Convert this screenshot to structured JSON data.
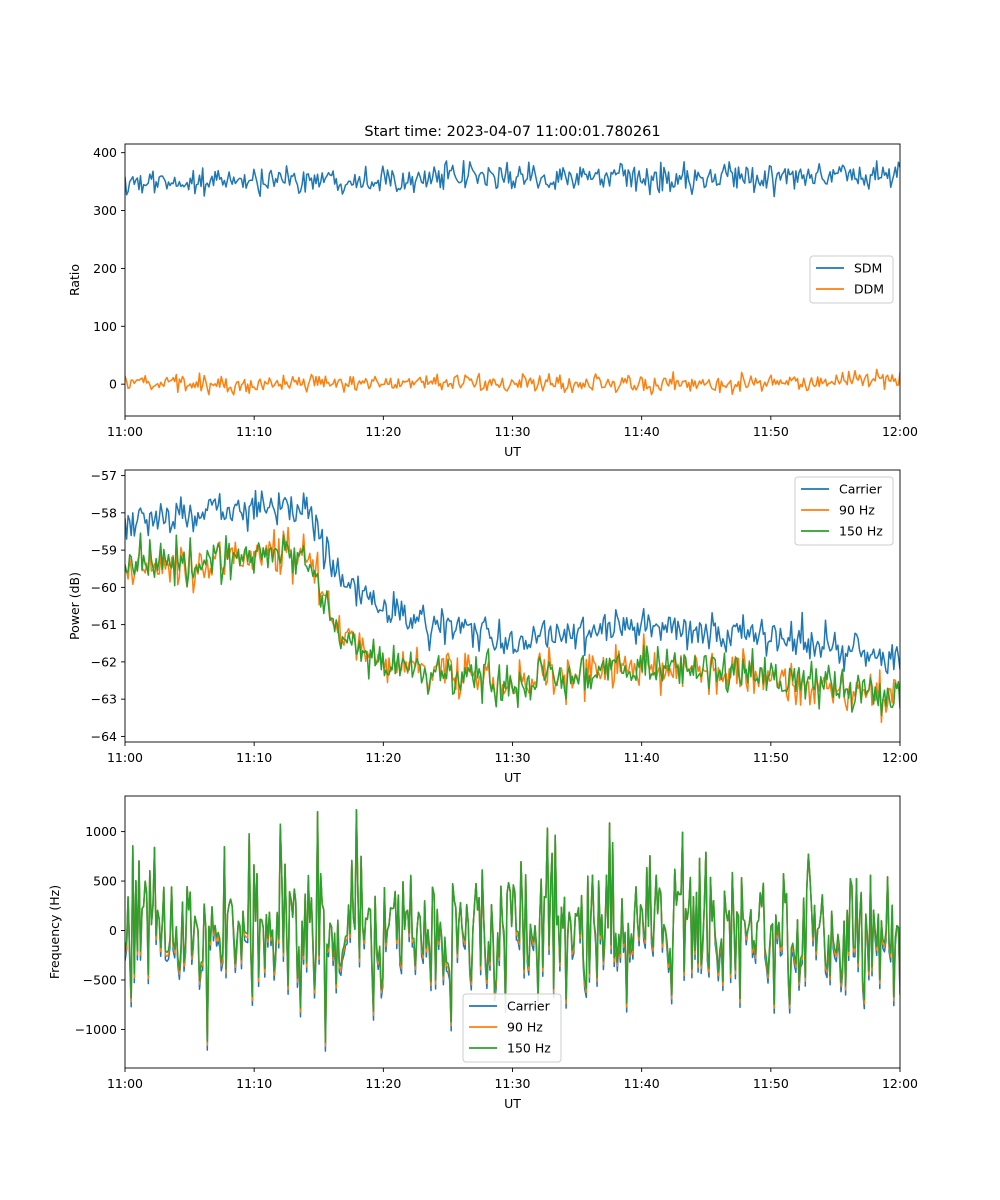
{
  "figure": {
    "title": "Start time: 2023-04-07 11:00:01.780261"
  },
  "colors": {
    "blue": "#1f77b4",
    "orange": "#ff7f0e",
    "green": "#2ca02c"
  },
  "chart_data": [
    {
      "type": "line",
      "title": "Start time: 2023-04-07 11:00:01.780261",
      "xlabel": "UT",
      "ylabel": "Ratio",
      "xlim": [
        "11:00",
        "12:00"
      ],
      "ylim": [
        -55,
        415
      ],
      "x_ticks": [
        "11:00",
        "11:10",
        "11:20",
        "11:30",
        "11:40",
        "11:50",
        "12:00"
      ],
      "y_ticks": [
        0,
        100,
        200,
        300,
        400
      ],
      "grid": false,
      "legend_placement": "center-right",
      "series": [
        {
          "name": "SDM",
          "color": "#1f77b4",
          "mean": 357,
          "range": [
            318,
            392
          ],
          "x": [
            "11:00",
            "11:10",
            "11:20",
            "11:30",
            "11:40",
            "11:50",
            "12:00"
          ],
          "values": [
            345,
            352,
            356,
            358,
            355,
            356,
            362
          ]
        },
        {
          "name": "DDM",
          "color": "#ff7f0e",
          "mean": 0,
          "range": [
            -32,
            27
          ],
          "x": [
            "11:00",
            "11:10",
            "11:20",
            "11:30",
            "11:40",
            "11:50",
            "12:00"
          ],
          "values": [
            3,
            -2,
            5,
            0,
            0,
            2,
            10
          ]
        }
      ]
    },
    {
      "type": "line",
      "title": "",
      "xlabel": "UT",
      "ylabel": "Power (dB)",
      "xlim": [
        "11:00",
        "12:00"
      ],
      "ylim": [
        -64.15,
        -56.85
      ],
      "x_ticks": [
        "11:00",
        "11:10",
        "11:20",
        "11:30",
        "11:40",
        "11:50",
        "12:00"
      ],
      "y_ticks": [
        -64,
        -63,
        -62,
        -61,
        -60,
        -59,
        -58,
        -57
      ],
      "grid": false,
      "legend_placement": "upper-right",
      "series": [
        {
          "name": "Carrier",
          "color": "#1f77b4",
          "x": [
            "11:00",
            "11:05",
            "11:10",
            "11:14",
            "11:16",
            "11:18",
            "11:20",
            "11:25",
            "11:30",
            "11:35",
            "11:40",
            "11:45",
            "11:50",
            "11:55",
            "12:00"
          ],
          "values": [
            -58.3,
            -58.0,
            -57.8,
            -57.9,
            -59.3,
            -60.2,
            -60.6,
            -61.0,
            -61.5,
            -61.2,
            -61.0,
            -61.2,
            -61.3,
            -61.6,
            -62.0
          ]
        },
        {
          "name": "90 Hz",
          "color": "#ff7f0e",
          "x": [
            "11:00",
            "11:05",
            "11:10",
            "11:14",
            "11:16",
            "11:18",
            "11:20",
            "11:25",
            "11:30",
            "11:35",
            "11:40",
            "11:45",
            "11:50",
            "11:55",
            "12:00"
          ],
          "values": [
            -59.5,
            -59.4,
            -59.1,
            -59.2,
            -60.6,
            -61.6,
            -62.0,
            -62.2,
            -62.6,
            -62.2,
            -62.1,
            -62.3,
            -62.4,
            -62.8,
            -63.0
          ]
        },
        {
          "name": "150 Hz",
          "color": "#2ca02c",
          "x": [
            "11:00",
            "11:05",
            "11:10",
            "11:14",
            "11:16",
            "11:18",
            "11:20",
            "11:25",
            "11:30",
            "11:35",
            "11:40",
            "11:45",
            "11:50",
            "11:55",
            "12:00"
          ],
          "values": [
            -59.4,
            -59.3,
            -59.0,
            -59.3,
            -60.7,
            -61.7,
            -62.0,
            -62.3,
            -62.6,
            -62.3,
            -62.1,
            -62.2,
            -62.4,
            -62.7,
            -63.0
          ]
        }
      ]
    },
    {
      "type": "line",
      "title": "",
      "xlabel": "UT",
      "ylabel": "Frequency (Hz)",
      "xlim": [
        "11:00",
        "12:00"
      ],
      "ylim": [
        -1390,
        1360
      ],
      "x_ticks": [
        "11:00",
        "11:10",
        "11:20",
        "11:30",
        "11:40",
        "11:50",
        "12:00"
      ],
      "y_ticks": [
        -1000,
        -500,
        0,
        500,
        1000
      ],
      "grid": false,
      "legend_placement": "lower-center",
      "series": [
        {
          "name": "Carrier",
          "color": "#1f77b4",
          "mean": 0,
          "range": [
            -1270,
            1220
          ]
        },
        {
          "name": "90 Hz",
          "color": "#ff7f0e",
          "mean": 0,
          "range": [
            -1250,
            1230
          ]
        },
        {
          "name": "150 Hz",
          "color": "#2ca02c",
          "mean": 0,
          "range": [
            -1200,
            1230
          ]
        }
      ]
    }
  ]
}
